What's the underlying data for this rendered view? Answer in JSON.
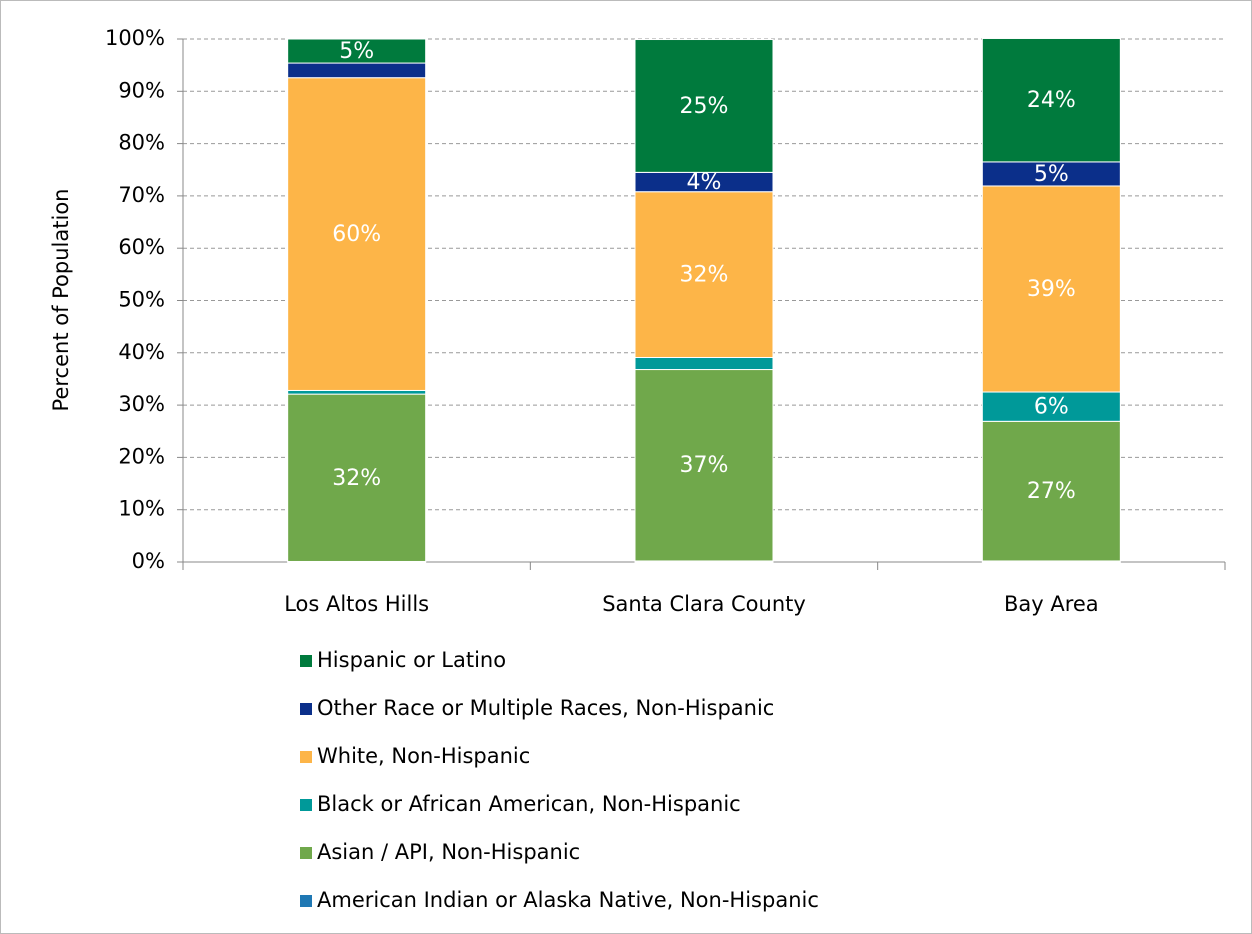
{
  "chart_data": {
    "type": "stacked_bar",
    "y_label": "Percent of Population",
    "categories": [
      "Los Altos Hills",
      "Santa Clara County",
      "Bay Area"
    ],
    "series": [
      {
        "name": "American Indian or Alaska Native, Non-Hispanic",
        "color": "#1f78b4",
        "values": [
          0.1,
          0.2,
          0.2
        ],
        "value_labels": [
          null,
          null,
          null
        ]
      },
      {
        "name": "Asian / API, Non-Hispanic",
        "color": "#70a84b",
        "values": [
          32.0,
          36.6,
          26.7
        ],
        "value_labels": [
          "32%",
          "37%",
          "27%"
        ]
      },
      {
        "name": "Black or African American, Non-Hispanic",
        "color": "#009999",
        "values": [
          0.7,
          2.3,
          5.6
        ],
        "value_labels": [
          null,
          null,
          "6%"
        ]
      },
      {
        "name": "White, Non-Hispanic",
        "color": "#fdb548",
        "values": [
          59.8,
          31.7,
          39.4
        ],
        "value_labels": [
          "60%",
          "32%",
          "39%"
        ]
      },
      {
        "name": "Other Race or Multiple Races, Non-Hispanic",
        "color": "#0b2f8a",
        "values": [
          2.8,
          3.7,
          4.6
        ],
        "value_labels": [
          null,
          "4%",
          "5%"
        ]
      },
      {
        "name": "Hispanic or Latino",
        "color": "#007a3d",
        "values": [
          4.6,
          25.4,
          23.6
        ],
        "value_labels": [
          "5%",
          "25%",
          "24%"
        ]
      }
    ],
    "ylim": [
      0,
      100
    ],
    "yticks": [
      {
        "value": 0,
        "label": "0%"
      },
      {
        "value": 10,
        "label": "10%"
      },
      {
        "value": 20,
        "label": "20%"
      },
      {
        "value": 30,
        "label": "30%"
      },
      {
        "value": 40,
        "label": "40%"
      },
      {
        "value": 50,
        "label": "50%"
      },
      {
        "value": 60,
        "label": "60%"
      },
      {
        "value": 70,
        "label": "70%"
      },
      {
        "value": 80,
        "label": "80%"
      },
      {
        "value": 90,
        "label": "90%"
      },
      {
        "value": 100,
        "label": "100%"
      }
    ],
    "grid": true,
    "legend": "bottom"
  }
}
